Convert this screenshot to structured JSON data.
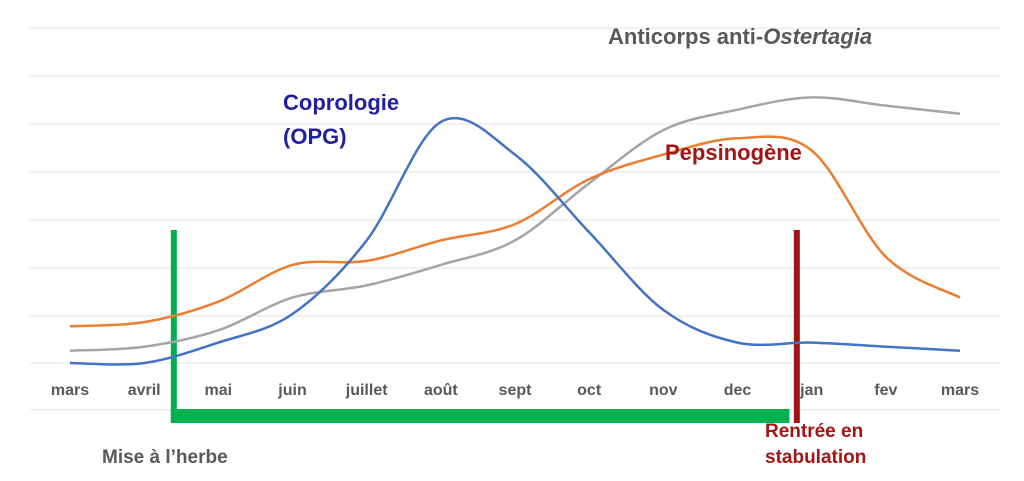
{
  "chart_data": {
    "type": "line",
    "title": "",
    "xlabel": "",
    "ylabel": "",
    "categories": [
      "mars",
      "avril",
      "mai",
      "juin",
      "juillet",
      "août",
      "sept",
      "oct",
      "nov",
      "dec",
      "jan",
      "fev",
      "mars"
    ],
    "ylim": [
      0,
      7
    ],
    "grid": true,
    "series": [
      {
        "key": "opg",
        "name_line1": "Coprologie",
        "name_line2": "(OPG)",
        "color": "#4472c4",
        "values": [
          0.0,
          0.0,
          0.5,
          1.2,
          3.0,
          5.9,
          5.1,
          3.2,
          1.3,
          0.5,
          0.5,
          0.4,
          0.3
        ]
      },
      {
        "key": "pepsinogene",
        "name": "Pepsinogène",
        "color": "#ed7d31",
        "label_color": "#a31515",
        "values": [
          0.9,
          1.0,
          1.5,
          2.4,
          2.5,
          3.0,
          3.4,
          4.5,
          5.1,
          5.5,
          5.2,
          2.6,
          1.6
        ]
      },
      {
        "key": "anticorps",
        "name_prefix": "Anticorps anti-",
        "name_italic": "Ostertagia",
        "color": "#a5a5a5",
        "label_color": "#595959",
        "values": [
          0.3,
          0.4,
          0.8,
          1.6,
          1.9,
          2.4,
          3.0,
          4.4,
          5.7,
          6.2,
          6.5,
          6.3,
          6.1
        ]
      }
    ],
    "annotations": {
      "grazing": {
        "label": "Mise à l’herbe",
        "color": "#00b050",
        "label_color": "#595959",
        "start": 1.4,
        "end": 9.7
      },
      "housing": {
        "label_line1": "Rentrée en",
        "label_line2": "stabulation",
        "color": "#a31515",
        "at": 9.8
      }
    }
  }
}
